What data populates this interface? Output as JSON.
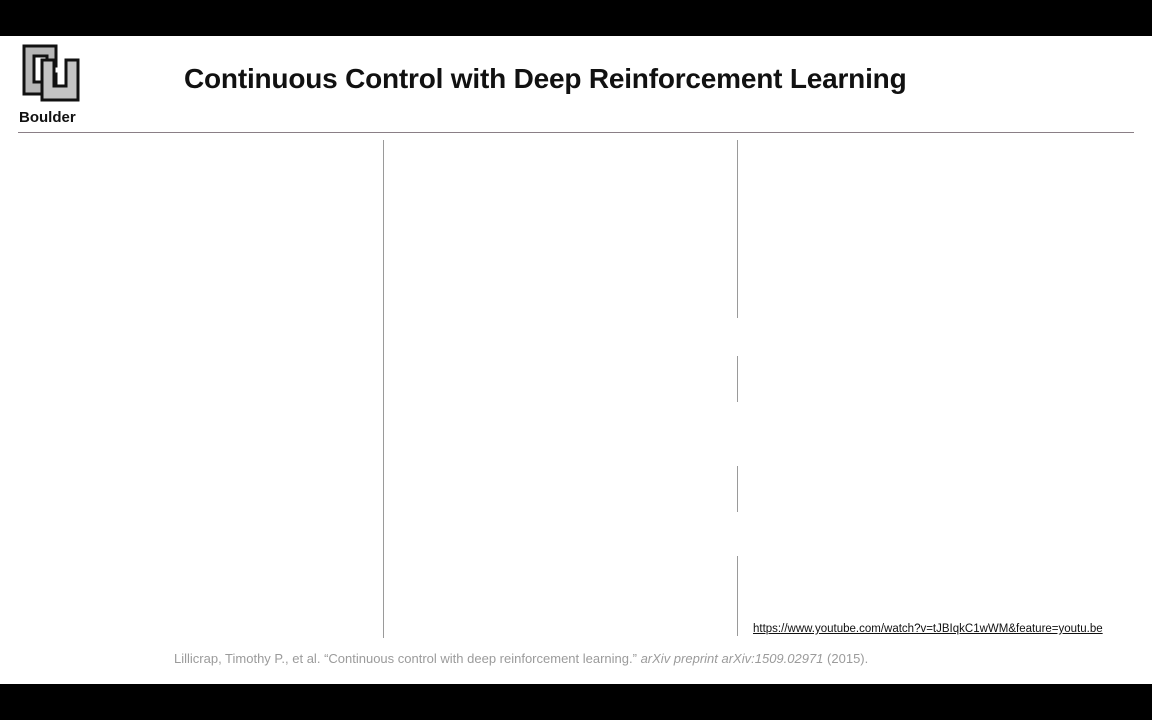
{
  "logo": {
    "icon": "cu-interlocking-logo-icon",
    "caption": "Boulder"
  },
  "slide": {
    "title": "Continuous Control with Deep Reinforcement Learning"
  },
  "video_link": {
    "text": "https://www.youtube.com/watch?v=tJBIqkC1wWM&feature=youtu.be"
  },
  "citation": {
    "authors": "Lillicrap, Timothy P., et al.",
    "paper_title": "“Continuous control with deep reinforcement learning.”",
    "journal": "arXiv preprint arXiv:1509.02971",
    "year": "(2015)."
  },
  "colors": {
    "letterbox": "#000000",
    "slide_background": "#ffffff",
    "title_text": "#111111",
    "rule": "#8a7f86",
    "citation_text": "#9b9b9b"
  }
}
